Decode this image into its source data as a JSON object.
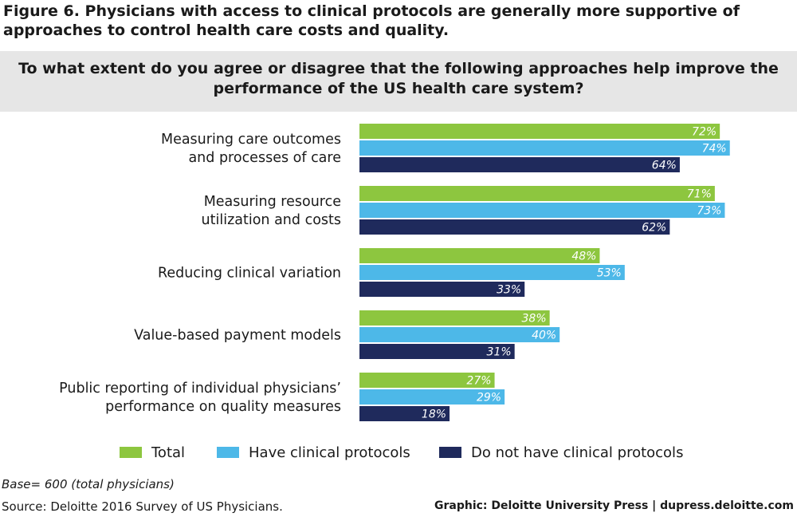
{
  "figure": {
    "title": "Figure 6. Physicians with access to clinical protocols are generally more supportive of approaches to control health care costs and quality.",
    "question": "To what extent do you agree or disagree that the following approaches help improve the performance of the US health care system?"
  },
  "chart_data": {
    "type": "bar",
    "orientation": "horizontal",
    "categories": [
      [
        "Measuring care outcomes",
        "and processes of care"
      ],
      [
        "Measuring resource",
        "utilization and costs"
      ],
      [
        "Reducing clinical variation"
      ],
      [
        "Value-based payment models"
      ],
      [
        "Public reporting of individual physicians’",
        "performance on quality measures"
      ]
    ],
    "series": [
      {
        "name": "Total",
        "color": "#8dc63f",
        "values": [
          72,
          71,
          48,
          38,
          27
        ]
      },
      {
        "name": "Have clinical protocols",
        "color": "#4db8e8",
        "values": [
          74,
          73,
          53,
          40,
          29
        ]
      },
      {
        "name": "Do not have clinical protocols",
        "color": "#1f2a5c",
        "values": [
          64,
          62,
          33,
          31,
          18
        ]
      }
    ],
    "value_suffix": "%",
    "xlim": [
      0,
      100
    ],
    "grid": false,
    "legend_position": "bottom"
  },
  "footer": {
    "base": "Base= 600 (total physicians)",
    "source": "Source: Deloitte 2016 Survey of US Physicians.",
    "credit": "Graphic: Deloitte University Press  |  dupress.deloitte.com"
  }
}
